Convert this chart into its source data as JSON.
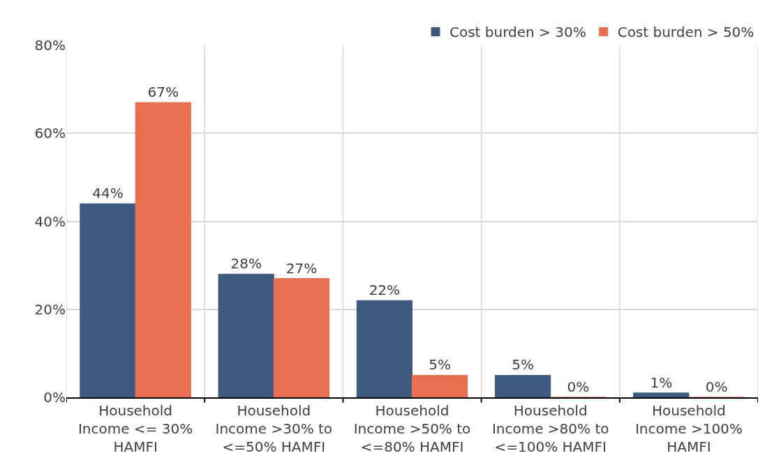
{
  "chart_data": {
    "type": "bar",
    "categories": [
      "Household Income <= 30% HAMFI",
      "Household Income >30% to <=50% HAMFI",
      "Household Income >50% to <=80% HAMFI",
      "Household Income >80% to <=100% HAMFI",
      "Household Income >100% HAMFI"
    ],
    "series": [
      {
        "name": "Cost burden > 30%",
        "color": "#3e5a7f",
        "values": [
          44,
          28,
          22,
          5,
          1
        ],
        "value_labels": [
          "44%",
          "28%",
          "22%",
          "5%",
          "1%"
        ]
      },
      {
        "name": "Cost burden > 50%",
        "color": "#e67050",
        "values": [
          67,
          27,
          5,
          0,
          0
        ],
        "value_labels": [
          "67%",
          "27%",
          "5%",
          "0%",
          "0%"
        ]
      }
    ],
    "ylim": [
      0,
      80
    ],
    "yticks": [
      {
        "value": 0,
        "label": "0%"
      },
      {
        "value": 20,
        "label": "20%"
      },
      {
        "value": 40,
        "label": "40%"
      },
      {
        "value": 60,
        "label": "60%"
      },
      {
        "value": 80,
        "label": "80%"
      }
    ],
    "grid": true,
    "legend": "top right"
  }
}
